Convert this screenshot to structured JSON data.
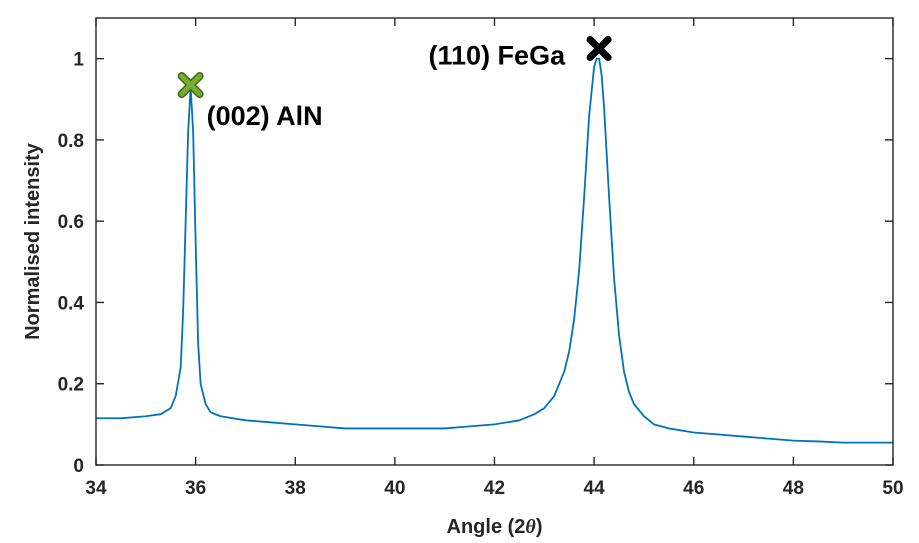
{
  "chart_data": {
    "type": "line",
    "title": "",
    "xlabel_prefix": "Angle (2",
    "xlabel_symbol": "θ",
    "xlabel_suffix": ")",
    "ylabel": "Normalised intensity",
    "xlim": [
      34,
      50
    ],
    "ylim": [
      0,
      1.1
    ],
    "xticks": [
      34,
      36,
      38,
      40,
      42,
      44,
      46,
      48,
      50
    ],
    "xtick_labels": [
      "34",
      "36",
      "38",
      "40",
      "42",
      "44",
      "46",
      "48",
      "50"
    ],
    "yticks": [
      0,
      0.2,
      0.4,
      0.6,
      0.8,
      1
    ],
    "ytick_labels": [
      "0",
      "0.2",
      "0.4",
      "0.6",
      "0.8",
      "1"
    ],
    "grid": false,
    "colors": {
      "series": "#0072BD",
      "aln_marker": "#77AC30",
      "fega_marker": "#000000",
      "axes": "#262626"
    },
    "series": [
      {
        "x": [
          34.0,
          34.5,
          35.0,
          35.3,
          35.5,
          35.6,
          35.7,
          35.75,
          35.8,
          35.85,
          35.9,
          35.95,
          36.0,
          36.05,
          36.1,
          36.2,
          36.3,
          36.5,
          37.0,
          37.5,
          38.0,
          38.5,
          39.0,
          39.5,
          40.0,
          40.5,
          41.0,
          41.5,
          42.0,
          42.5,
          42.8,
          43.0,
          43.2,
          43.4,
          43.5,
          43.6,
          43.7,
          43.8,
          43.9,
          44.0,
          44.05,
          44.1,
          44.15,
          44.2,
          44.3,
          44.4,
          44.5,
          44.6,
          44.7,
          44.8,
          45.0,
          45.2,
          45.5,
          46.0,
          46.5,
          47.0,
          47.5,
          48.0,
          48.5,
          49.0,
          49.5,
          50.0
        ],
        "y": [
          0.115,
          0.115,
          0.12,
          0.125,
          0.14,
          0.17,
          0.24,
          0.38,
          0.6,
          0.82,
          0.93,
          0.82,
          0.55,
          0.3,
          0.2,
          0.15,
          0.13,
          0.12,
          0.11,
          0.105,
          0.1,
          0.095,
          0.09,
          0.09,
          0.09,
          0.09,
          0.09,
          0.095,
          0.1,
          0.11,
          0.125,
          0.14,
          0.17,
          0.23,
          0.28,
          0.36,
          0.48,
          0.66,
          0.86,
          0.98,
          1.0,
          1.0,
          0.96,
          0.88,
          0.66,
          0.46,
          0.32,
          0.23,
          0.18,
          0.15,
          0.12,
          0.1,
          0.09,
          0.08,
          0.075,
          0.07,
          0.065,
          0.06,
          0.058,
          0.055,
          0.055,
          0.055
        ]
      }
    ],
    "annotations": [
      {
        "label": "(002) AlN",
        "x": 35.9,
        "y": 0.935,
        "marker": "x",
        "color": "#77AC30"
      },
      {
        "label": "(110) FeGa",
        "x": 44.1,
        "y": 1.025,
        "marker": "x",
        "color": "#000000"
      }
    ]
  }
}
